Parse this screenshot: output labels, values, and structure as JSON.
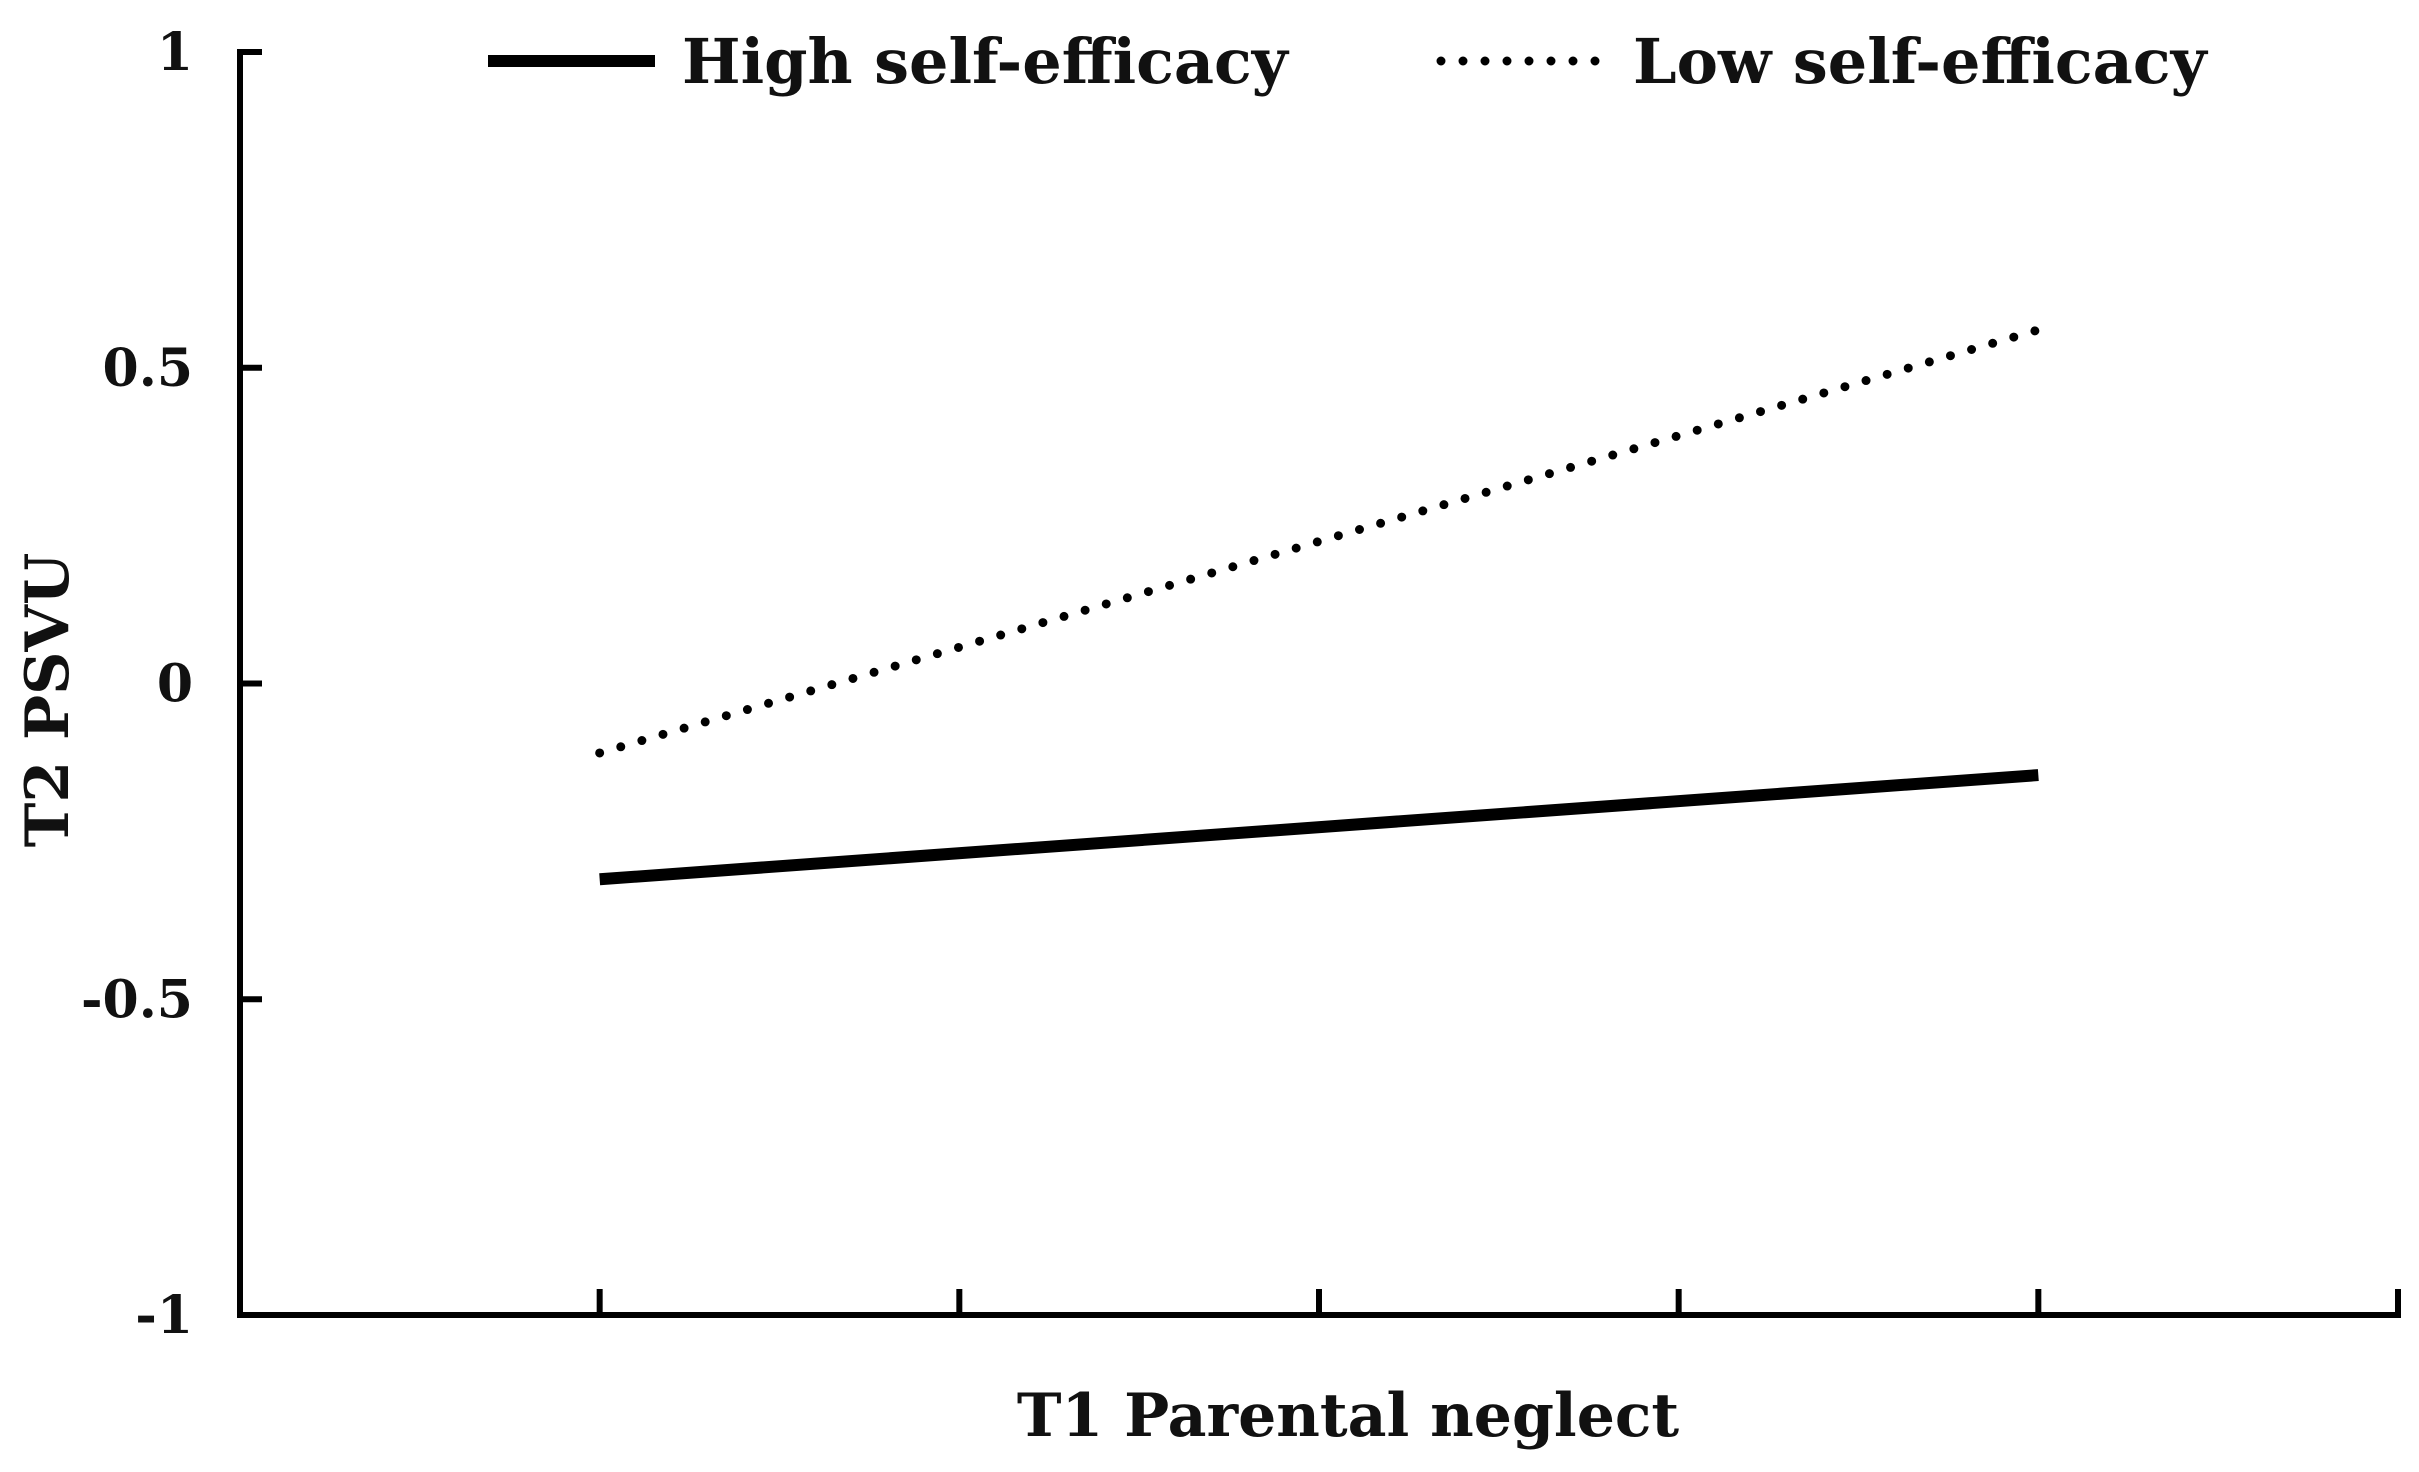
{
  "chart_data": {
    "type": "line",
    "title": "",
    "xlabel": "T1 Parental neglect",
    "ylabel": "T2 PSVU",
    "ylim": [
      -1,
      1
    ],
    "yticks": [
      {
        "value": 1,
        "label": "1"
      },
      {
        "value": 0.5,
        "label": "0.5"
      },
      {
        "value": 0,
        "label": "0"
      },
      {
        "value": -0.5,
        "label": "-0.5"
      },
      {
        "value": -1,
        "label": "-1"
      }
    ],
    "xlim": [
      0,
      6
    ],
    "xticks": [
      1,
      2,
      3,
      4,
      5
    ],
    "legend_position": "top",
    "series": [
      {
        "name": "High self-efficacy",
        "style": "solid",
        "color": "#000000",
        "points": [
          {
            "x": 1,
            "y": -0.31
          },
          {
            "x": 5,
            "y": -0.145
          }
        ]
      },
      {
        "name": "Low self-efficacy",
        "style": "dotted",
        "color": "#000000",
        "points": [
          {
            "x": 1,
            "y": -0.11
          },
          {
            "x": 5,
            "y": 0.56
          }
        ]
      }
    ]
  }
}
